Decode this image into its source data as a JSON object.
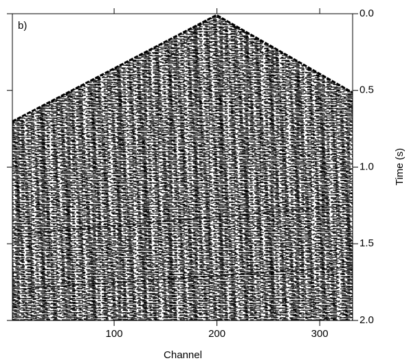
{
  "chart_data": {
    "type": "image",
    "panel_label": "b)",
    "x_label": "Channel",
    "y_label": "Time (s)",
    "xlim": [
      1,
      332
    ],
    "xticks": [
      100,
      200,
      300
    ],
    "ylim": [
      0,
      2
    ],
    "y_inverted": true,
    "y_axis_side": "right",
    "yticks": [
      {
        "value": 0,
        "label": "0.0"
      },
      {
        "value": 0.5,
        "label": "0.5"
      },
      {
        "value": 1,
        "label": "1.0"
      },
      {
        "value": 1.5,
        "label": "1.5"
      },
      {
        "value": 2,
        "label": "2.0"
      }
    ]
  }
}
